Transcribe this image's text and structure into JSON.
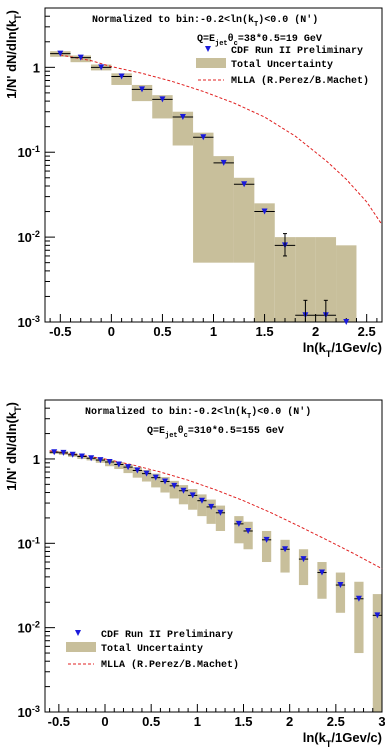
{
  "chart_data": [
    {
      "type": "scatter",
      "annotation_line1": "Normalized to bin:-0.2<ln(k",
      "annotation_line1_sub": "T",
      "annotation_line1_end": ")<0.0 (N')",
      "annotation_line2_pre": "Q=E",
      "annotation_line2_sub1": "jet",
      "annotation_line2_mid": "θ",
      "annotation_line2_sub2": "c",
      "annotation_line2_end": "=38*0.5=19 GeV",
      "xlabel_pre": "ln(k",
      "xlabel_sub": "T",
      "xlabel_post": "/1Gev/c)",
      "ylabel_pre": "1/N' dN/dln(k",
      "ylabel_sub": "T",
      "ylabel_post": ")",
      "legend_position": "top-right",
      "legend": {
        "data": "CDF Run II Preliminary",
        "band": "Total Uncertainty",
        "theory": "MLLA (R.Perez/B.Machet)"
      },
      "xlim": [
        -0.65,
        2.65
      ],
      "ylim_log": [
        0.001,
        5
      ],
      "x_ticks": [
        -0.5,
        0,
        0.5,
        1,
        1.5,
        2,
        2.5
      ],
      "x_tick_labels": [
        "-0.5",
        "0",
        "0.5",
        "1",
        "1.5",
        "2",
        "2.5"
      ],
      "y_ticks": [
        0.001,
        0.01,
        0.1,
        1
      ],
      "y_tick_exps": [
        "-3",
        "-2",
        "-1",
        ""
      ],
      "bin_width": 0.2,
      "points": [
        {
          "x": -0.5,
          "y": 1.45,
          "lo": 1.33,
          "hi": 1.55
        },
        {
          "x": -0.3,
          "y": 1.3,
          "lo": 1.15,
          "hi": 1.38
        },
        {
          "x": -0.1,
          "y": 1.0,
          "lo": 0.92,
          "hi": 1.08
        },
        {
          "x": 0.1,
          "y": 0.78,
          "lo": 0.62,
          "hi": 0.85
        },
        {
          "x": 0.3,
          "y": 0.55,
          "lo": 0.4,
          "hi": 0.62
        },
        {
          "x": 0.5,
          "y": 0.42,
          "lo": 0.25,
          "hi": 0.47
        },
        {
          "x": 0.7,
          "y": 0.26,
          "lo": 0.12,
          "hi": 0.3
        },
        {
          "x": 0.9,
          "y": 0.15,
          "lo": 0.005,
          "hi": 0.17
        },
        {
          "x": 1.1,
          "y": 0.075,
          "lo": 0.005,
          "hi": 0.09
        },
        {
          "x": 1.3,
          "y": 0.042,
          "lo": 0.005,
          "hi": 0.05
        },
        {
          "x": 1.5,
          "y": 0.02,
          "lo": 0.001,
          "hi": 0.025
        },
        {
          "x": 1.7,
          "y": 0.008,
          "lo": 0.001,
          "hi": 0.01
        },
        {
          "x": 1.9,
          "y": 0.0012,
          "lo": 0.001,
          "hi": 0.01
        },
        {
          "x": 2.1,
          "y": 0.0012,
          "lo": 0.001,
          "hi": 0.01
        },
        {
          "x": 2.3,
          "y": 0.001,
          "lo": 0.001,
          "hi": 0.008
        }
      ],
      "error_bars": [
        {
          "x": 1.7,
          "lo": 0.006,
          "hi": 0.011
        },
        {
          "x": 1.9,
          "lo": 0.0008,
          "hi": 0.0018
        },
        {
          "x": 2.1,
          "lo": 0.0008,
          "hi": 0.0018
        }
      ],
      "theory": {
        "x": [
          -0.5,
          -0.2,
          0.0,
          0.3,
          0.6,
          0.9,
          1.2,
          1.5,
          1.8,
          2.1,
          2.3,
          2.5,
          2.65
        ],
        "y": [
          1.4,
          1.2,
          1.02,
          0.85,
          0.68,
          0.52,
          0.38,
          0.26,
          0.155,
          0.08,
          0.048,
          0.026,
          0.014
        ]
      }
    },
    {
      "type": "scatter",
      "annotation_line1": "Normalized to bin:-0.2<ln(k",
      "annotation_line1_sub": "T",
      "annotation_line1_end": ")<0.0 (N')",
      "annotation_line2_pre": "Q=E",
      "annotation_line2_sub1": "jet",
      "annotation_line2_mid": "θ",
      "annotation_line2_sub2": "c",
      "annotation_line2_end": "=310*0.5=155 GeV",
      "xlabel_pre": "ln(k",
      "xlabel_sub": "T",
      "xlabel_post": "/1Gev/c)",
      "ylabel_pre": "1/N' dN/dln(k",
      "ylabel_sub": "T",
      "ylabel_post": ")",
      "legend_position": "bottom-left",
      "legend": {
        "data": "CDF Run II Preliminary",
        "band": "Total Uncertainty",
        "theory": "MLLA (R.Perez/B.Machet)"
      },
      "xlim": [
        -0.65,
        3.0
      ],
      "ylim_log": [
        0.001,
        5
      ],
      "x_ticks": [
        -0.5,
        0,
        0.5,
        1,
        1.5,
        2,
        2.5,
        3
      ],
      "x_tick_labels": [
        "-0.5",
        "0",
        "0.5",
        "1",
        "1.5",
        "2",
        "2.5",
        "3"
      ],
      "y_ticks": [
        0.001,
        0.01,
        0.1,
        1
      ],
      "y_tick_exps": [
        "-3",
        "-2",
        "-1",
        ""
      ],
      "bin_width": 0.1,
      "points": [
        {
          "x": -0.55,
          "y": 1.2,
          "lo": 1.15,
          "hi": 1.25
        },
        {
          "x": -0.45,
          "y": 1.18,
          "lo": 1.12,
          "hi": 1.24
        },
        {
          "x": -0.35,
          "y": 1.12,
          "lo": 1.06,
          "hi": 1.18
        },
        {
          "x": -0.25,
          "y": 1.07,
          "lo": 1.0,
          "hi": 1.12
        },
        {
          "x": -0.15,
          "y": 1.02,
          "lo": 0.96,
          "hi": 1.06
        },
        {
          "x": -0.05,
          "y": 0.97,
          "lo": 0.9,
          "hi": 1.02
        },
        {
          "x": 0.05,
          "y": 0.92,
          "lo": 0.82,
          "hi": 0.97
        },
        {
          "x": 0.15,
          "y": 0.86,
          "lo": 0.76,
          "hi": 0.92
        },
        {
          "x": 0.25,
          "y": 0.8,
          "lo": 0.68,
          "hi": 0.86
        },
        {
          "x": 0.35,
          "y": 0.73,
          "lo": 0.6,
          "hi": 0.8
        },
        {
          "x": 0.45,
          "y": 0.67,
          "lo": 0.54,
          "hi": 0.74
        },
        {
          "x": 0.55,
          "y": 0.6,
          "lo": 0.46,
          "hi": 0.67
        },
        {
          "x": 0.65,
          "y": 0.54,
          "lo": 0.4,
          "hi": 0.61
        },
        {
          "x": 0.75,
          "y": 0.48,
          "lo": 0.34,
          "hi": 0.55
        },
        {
          "x": 0.85,
          "y": 0.42,
          "lo": 0.29,
          "hi": 0.49
        },
        {
          "x": 0.95,
          "y": 0.37,
          "lo": 0.25,
          "hi": 0.44
        },
        {
          "x": 1.05,
          "y": 0.32,
          "lo": 0.21,
          "hi": 0.38
        },
        {
          "x": 1.15,
          "y": 0.27,
          "lo": 0.17,
          "hi": 0.33
        },
        {
          "x": 1.25,
          "y": 0.23,
          "lo": 0.14,
          "hi": 0.28
        },
        {
          "x": 1.45,
          "y": 0.17,
          "lo": 0.1,
          "hi": 0.21
        },
        {
          "x": 1.55,
          "y": 0.14,
          "lo": 0.085,
          "hi": 0.18
        },
        {
          "x": 1.75,
          "y": 0.11,
          "lo": 0.06,
          "hi": 0.14
        },
        {
          "x": 1.95,
          "y": 0.085,
          "lo": 0.045,
          "hi": 0.11
        },
        {
          "x": 2.15,
          "y": 0.065,
          "lo": 0.032,
          "hi": 0.085
        },
        {
          "x": 2.35,
          "y": 0.045,
          "lo": 0.022,
          "hi": 0.06
        },
        {
          "x": 2.55,
          "y": 0.032,
          "lo": 0.015,
          "hi": 0.045
        },
        {
          "x": 2.75,
          "y": 0.022,
          "lo": 0.005,
          "hi": 0.035
        },
        {
          "x": 2.95,
          "y": 0.014,
          "lo": 0.001,
          "hi": 0.025
        }
      ],
      "error_bars": [],
      "theory": {
        "x": [
          -0.6,
          -0.3,
          0.0,
          0.3,
          0.6,
          0.9,
          1.2,
          1.5,
          1.8,
          2.1,
          2.4,
          2.7,
          3.0
        ],
        "y": [
          1.25,
          1.12,
          1.0,
          0.85,
          0.7,
          0.56,
          0.43,
          0.32,
          0.23,
          0.16,
          0.11,
          0.075,
          0.05
        ]
      }
    }
  ]
}
